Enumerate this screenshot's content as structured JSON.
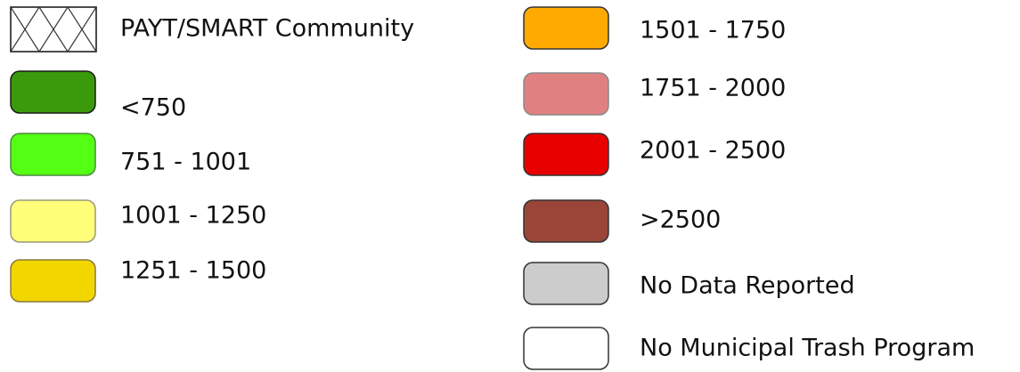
{
  "legend": {
    "items": [
      {
        "label": "PAYT/SMART Community",
        "color": "#ffffff",
        "border": "#333333",
        "pattern": "crosshatch"
      },
      {
        "label": "<750",
        "color": "#3a9a0c",
        "border": "#1a1a1a"
      },
      {
        "label": "751 - 1001",
        "color": "#55ff14",
        "border": "#4a8a3a"
      },
      {
        "label": "1001 - 1250",
        "color": "#ffff7a",
        "border": "#9a9a7a"
      },
      {
        "label": "1251 - 1500",
        "color": "#f2d600",
        "border": "#8a7a3a"
      },
      {
        "label": "1501 - 1750",
        "color": "#ffaa00",
        "border": "#333333"
      },
      {
        "label": "1751 - 2000",
        "color": "#e08080",
        "border": "#8a8a8a"
      },
      {
        "label": "2001 - 2500",
        "color": "#e80000",
        "border": "#333333"
      },
      {
        "label": ">2500",
        "color": "#9a4538",
        "border": "#333333"
      },
      {
        "label": "No Data Reported",
        "color": "#cccccc",
        "border": "#333333"
      },
      {
        "label": "No Municipal Trash Program",
        "color": "#ffffff",
        "border": "#333333"
      }
    ]
  }
}
